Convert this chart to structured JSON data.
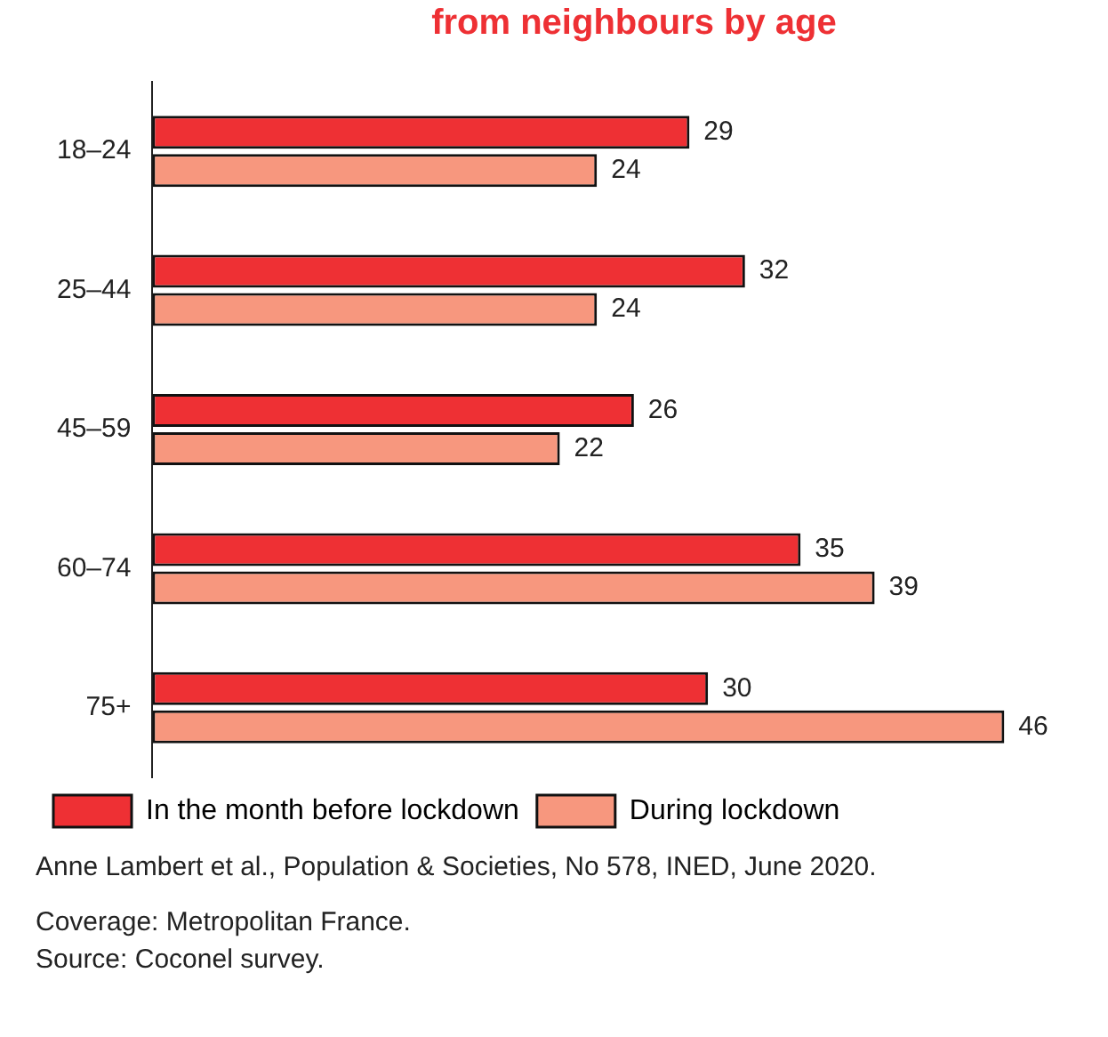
{
  "chart_data": {
    "type": "bar",
    "orientation": "horizontal",
    "title": "from neighbours by age",
    "categories": [
      "18–24",
      "25–44",
      "45–59",
      "60–74",
      "75+"
    ],
    "series": [
      {
        "name": "In the month before lockdown",
        "color": "#ee3034",
        "values": [
          29,
          32,
          26,
          35,
          30
        ]
      },
      {
        "name": "During lockdown",
        "color": "#f7977e",
        "values": [
          24,
          24,
          22,
          39,
          46
        ]
      }
    ],
    "data_labels": true,
    "legend": "bottom left",
    "tick_labels": "y",
    "annotations": [
      "Anne Lambert et al., Population & Societies, No 578, INED, June 2020.",
      "Coverage: Metropolitan France.",
      "Source: Coconel survey."
    ]
  }
}
